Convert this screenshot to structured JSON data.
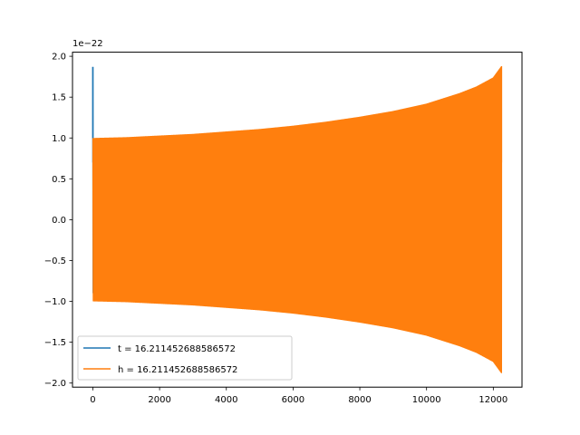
{
  "chart_data": {
    "type": "line",
    "title": "",
    "xlabel": "",
    "ylabel": "",
    "y_offset_text": "1e−22",
    "xlim": [
      -610,
      12860
    ],
    "ylim": [
      -2.05,
      2.05
    ],
    "x_ticks": [
      0,
      2000,
      4000,
      6000,
      8000,
      10000,
      12000
    ],
    "x_tick_labels": [
      "0",
      "2000",
      "4000",
      "6000",
      "8000",
      "10000",
      "12000"
    ],
    "y_ticks": [
      -2.0,
      -1.5,
      -1.0,
      -0.5,
      0.0,
      0.5,
      1.0,
      1.5,
      2.0
    ],
    "y_tick_labels": [
      "−2.0",
      "−1.5",
      "−1.0",
      "−0.5",
      "0.0",
      "0.5",
      "1.0",
      "1.5",
      "2.0"
    ],
    "grid": false,
    "legend_position": "lower-left",
    "series": [
      {
        "name": "t = 16.211452688586572",
        "color": "#1f77b4",
        "description_points": {
          "x": [
            0,
            0,
            5,
            10
          ],
          "y": [
            0.7,
            1.87,
            0.4,
            -0.9
          ]
        }
      },
      {
        "name": "h = 16.211452688586572",
        "color": "#ff7f0e",
        "envelope": {
          "x": [
            0,
            1000,
            2000,
            3000,
            4000,
            5000,
            6000,
            7000,
            8000,
            9000,
            10000,
            11000,
            11500,
            12000,
            12250
          ],
          "amplitude": [
            1.0,
            1.01,
            1.03,
            1.05,
            1.08,
            1.11,
            1.15,
            1.2,
            1.26,
            1.33,
            1.42,
            1.55,
            1.63,
            1.74,
            1.88
          ]
        }
      }
    ]
  }
}
